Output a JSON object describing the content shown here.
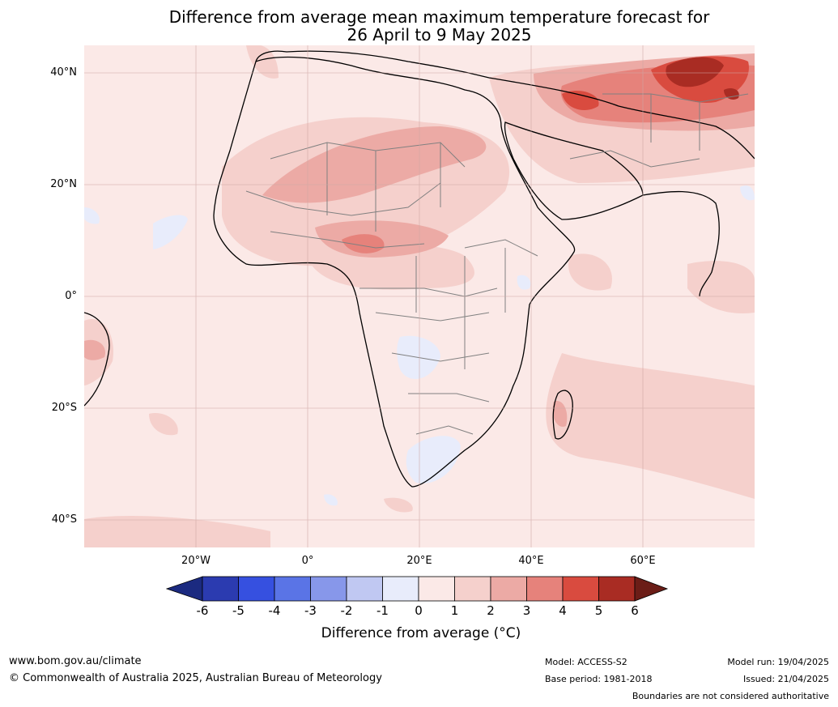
{
  "title_line1": "Difference from average mean maximum temperature forecast for",
  "title_line2": "26 April to 9 May 2025",
  "lat_labels": [
    "40°N",
    "20°N",
    "0°",
    "20°S",
    "40°S"
  ],
  "lon_labels": [
    "20°W",
    "0°",
    "20°E",
    "40°E",
    "60°E"
  ],
  "colorbar": {
    "ticks": [
      "-6",
      "-5",
      "-4",
      "-3",
      "-2",
      "-1",
      "0",
      "1",
      "2",
      "3",
      "4",
      "5",
      "6"
    ],
    "colors": [
      "#1b2a80",
      "#2b3bb0",
      "#3650e0",
      "#5a74e6",
      "#8797ea",
      "#c0c8f2",
      "#e8ecfb",
      "#fbe9e7",
      "#f5d0cc",
      "#ecaaa5",
      "#e6827b",
      "#d94b3f",
      "#a92c23",
      "#6b1d17"
    ],
    "label": "Difference from average (°C)"
  },
  "footer": {
    "url": "www.bom.gov.au/climate",
    "copyright": "© Commonwealth of Australia 2025, Australian Bureau of Meteorology",
    "model": "Model: ACCESS-S2",
    "base_period": "Base period: 1981-2018",
    "model_run": "Model run: 19/04/2025",
    "issued": "Issued: 21/04/2025",
    "boundaries": "Boundaries are not considered authoritative"
  }
}
